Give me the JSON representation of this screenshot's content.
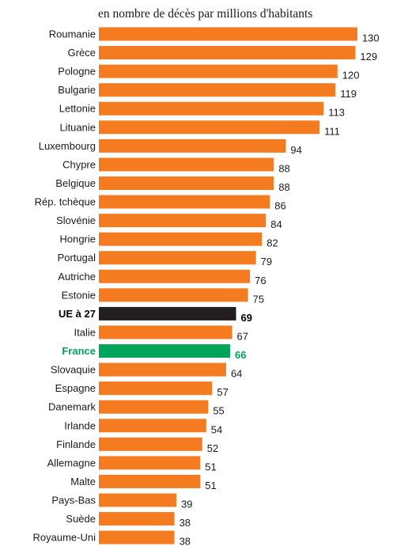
{
  "chart_data": {
    "type": "bar",
    "orientation": "horizontal",
    "subtitle": "en nombre de décès par millions d'habitants",
    "categories": [
      "Roumanie",
      "Grèce",
      "Pologne",
      "Bulgarie",
      "Lettonie",
      "Lituanie",
      "Luxembourg",
      "Chypre",
      "Belgique",
      "Rép. tchèque",
      "Slovénie",
      "Hongrie",
      "Portugal",
      "Autriche",
      "Estonie",
      "UE à 27",
      "Italie",
      "France",
      "Slovaquie",
      "Espagne",
      "Danemark",
      "Irlande",
      "Finlande",
      "Allemagne",
      "Malte",
      "Pays-Bas",
      "Suède",
      "Royaume-Uni"
    ],
    "values": [
      130,
      129,
      120,
      119,
      113,
      111,
      94,
      88,
      88,
      86,
      84,
      82,
      79,
      76,
      75,
      69,
      67,
      66,
      64,
      57,
      55,
      54,
      52,
      51,
      51,
      39,
      38,
      38
    ],
    "highlights": {
      "UE à 27": {
        "bar_color": "#231f20",
        "text_color": "#000000",
        "bold": true
      },
      "France": {
        "bar_color": "#00a35a",
        "text_color": "#00a35a",
        "bold": true
      }
    },
    "bar_color": "#f47b20",
    "text_color": "#1a1a1a",
    "grid": false,
    "legend": "none"
  }
}
